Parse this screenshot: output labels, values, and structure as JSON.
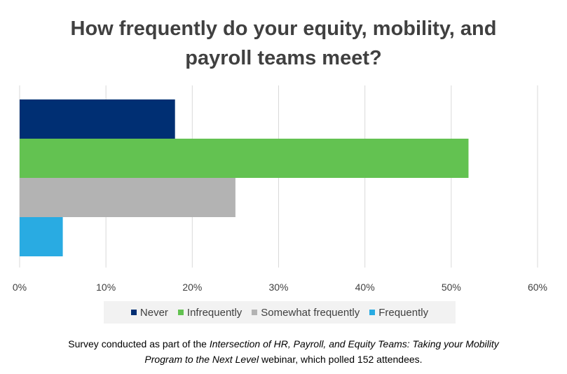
{
  "chart_data": {
    "type": "bar",
    "orientation": "horizontal",
    "title_lines": [
      "How frequently do your equity, mobility, and",
      "payroll teams meet?"
    ],
    "xlabel": "",
    "ylabel": "",
    "xlim": [
      0,
      60
    ],
    "x_ticks": [
      "0%",
      "10%",
      "20%",
      "30%",
      "40%",
      "50%",
      "60%"
    ],
    "grid": true,
    "legend_position": "bottom",
    "series": [
      {
        "name": "Never",
        "value": 18,
        "color": "#002f73"
      },
      {
        "name": "Infrequently",
        "value": 52,
        "color": "#63c251"
      },
      {
        "name": "Somewhat frequently",
        "value": 25,
        "color": "#b3b3b3"
      },
      {
        "name": "Frequently",
        "value": 5,
        "color": "#29abe2"
      }
    ]
  },
  "footnote": {
    "line1_plain": "Survey conducted as part of the ",
    "line1_italic": "Intersection of HR, Payroll, and Equity Teams: Taking your Mobility",
    "line2_italic": "Program to the Next Level",
    "line2_plain": " webinar, which polled 152 attendees."
  }
}
